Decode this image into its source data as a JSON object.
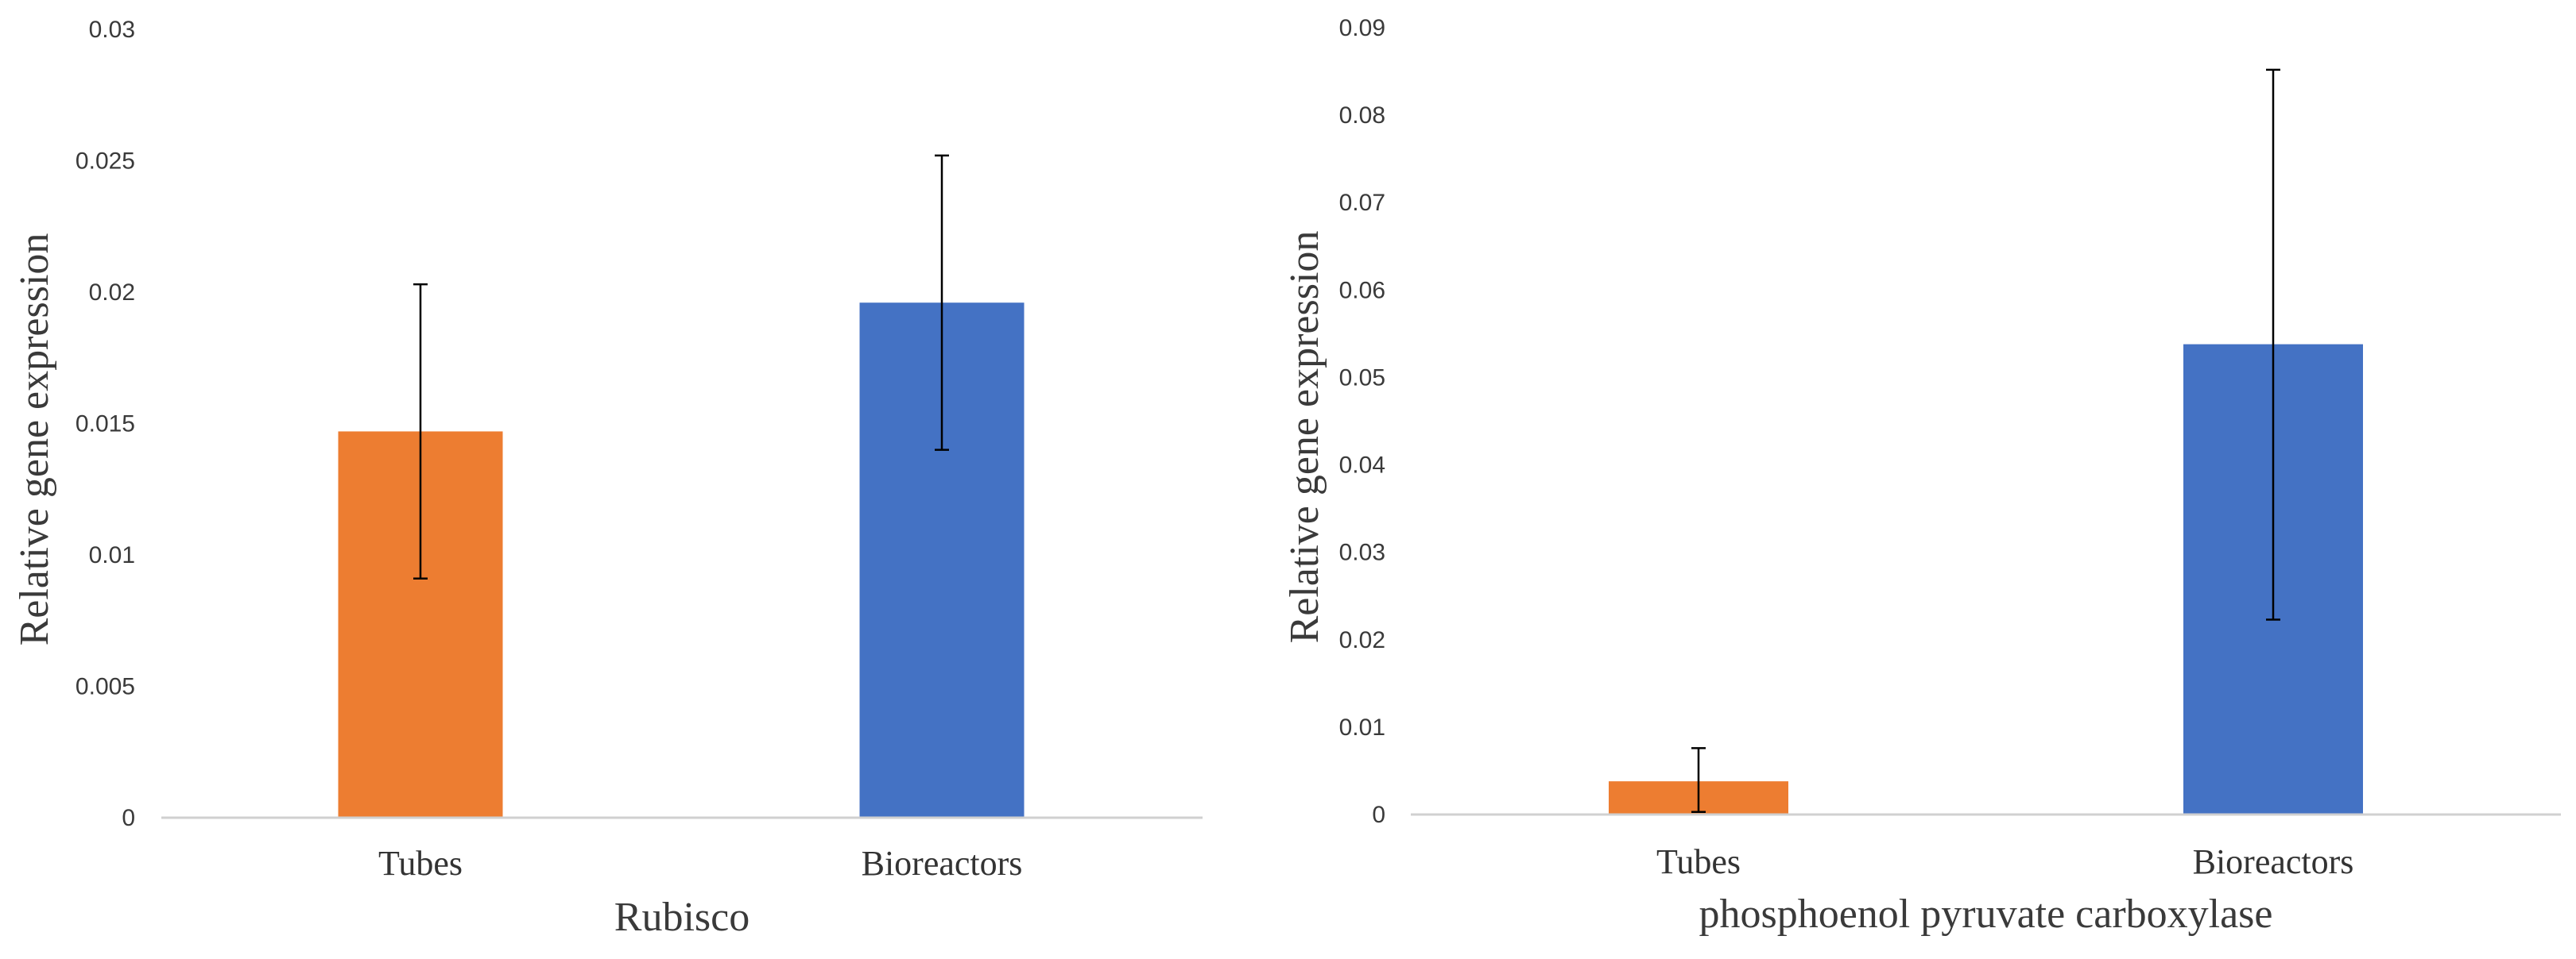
{
  "chart_data": [
    {
      "type": "bar",
      "categories": [
        "Tubes",
        "Bioreactors"
      ],
      "values": [
        0.0147,
        0.0196
      ],
      "error_low": [
        0.0091,
        0.014
      ],
      "error_high": [
        0.0203,
        0.0252
      ],
      "colors": [
        "#ED7D31",
        "#4472C4"
      ],
      "xlabel": "Rubisco",
      "ylabel": "Relative gene expression",
      "ylim": [
        0,
        0.03
      ],
      "yticks": [
        "0",
        "0.005",
        "0.01",
        "0.015",
        "0.02",
        "0.025",
        "0.03"
      ],
      "grid": false,
      "legend": "none"
    },
    {
      "type": "bar",
      "categories": [
        "Tubes",
        "Bioreactors"
      ],
      "values": [
        0.0038,
        0.0538
      ],
      "error_low": [
        0.0003,
        0.0223
      ],
      "error_high": [
        0.0076,
        0.0852
      ],
      "colors": [
        "#ED7D31",
        "#4472C4"
      ],
      "xlabel": "phosphoenol pyruvate carboxylase",
      "ylabel": "Relative gene expression",
      "ylim": [
        0,
        0.09
      ],
      "yticks": [
        "0",
        "0.01",
        "0.02",
        "0.03",
        "0.04",
        "0.05",
        "0.06",
        "0.07",
        "0.08",
        "0.09"
      ],
      "grid": false,
      "legend": "none"
    }
  ]
}
